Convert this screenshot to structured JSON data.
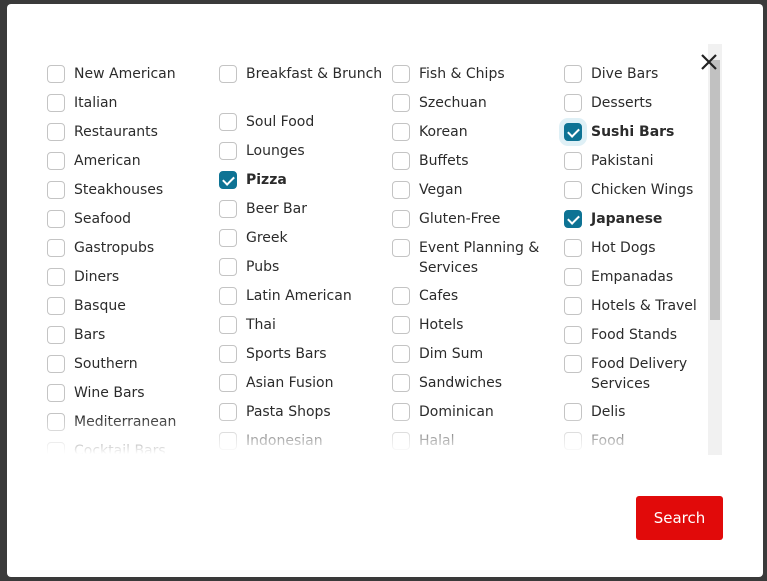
{
  "columns": [
    [
      {
        "label": "New American"
      },
      {
        "label": "Italian"
      },
      {
        "label": "Restaurants"
      },
      {
        "label": "American"
      },
      {
        "label": "Steakhouses"
      },
      {
        "label": "Seafood"
      },
      {
        "label": "Gastropubs"
      },
      {
        "label": "Diners"
      },
      {
        "label": "Basque"
      },
      {
        "label": "Bars"
      },
      {
        "label": "Southern"
      },
      {
        "label": "Wine Bars"
      },
      {
        "label": "Mediterranean"
      },
      {
        "label": "Cocktail Bars"
      }
    ],
    [
      {
        "label": "Breakfast & Brunch",
        "two": true
      },
      {
        "label": "Soul Food"
      },
      {
        "label": "Lounges"
      },
      {
        "label": "Pizza",
        "checked": true
      },
      {
        "label": "Beer Bar"
      },
      {
        "label": "Greek"
      },
      {
        "label": "Pubs"
      },
      {
        "label": "Latin American"
      },
      {
        "label": "Thai"
      },
      {
        "label": "Sports Bars"
      },
      {
        "label": "Asian Fusion"
      },
      {
        "label": "Pasta Shops"
      },
      {
        "label": "Indonesian"
      }
    ],
    [
      {
        "label": "Fish & Chips"
      },
      {
        "label": "Szechuan"
      },
      {
        "label": "Korean"
      },
      {
        "label": "Buffets"
      },
      {
        "label": "Vegan"
      },
      {
        "label": "Gluten-Free"
      },
      {
        "label": "Event Planning & Services",
        "two": true
      },
      {
        "label": "Cafes"
      },
      {
        "label": "Hotels"
      },
      {
        "label": "Dim Sum"
      },
      {
        "label": "Sandwiches"
      },
      {
        "label": "Dominican"
      },
      {
        "label": "Halal"
      }
    ],
    [
      {
        "label": "Dive Bars"
      },
      {
        "label": "Desserts"
      },
      {
        "label": "Sushi Bars",
        "checked": true,
        "focus": true
      },
      {
        "label": "Pakistani"
      },
      {
        "label": "Chicken Wings"
      },
      {
        "label": "Japanese",
        "checked": true
      },
      {
        "label": "Hot Dogs"
      },
      {
        "label": "Empanadas"
      },
      {
        "label": "Hotels & Travel"
      },
      {
        "label": "Food Stands"
      },
      {
        "label": "Food Delivery Services",
        "two": true
      },
      {
        "label": "Delis"
      },
      {
        "label": "Food"
      }
    ]
  ],
  "search_label": "Search",
  "close_icon": "close-x-icon",
  "colors": {
    "checked": "#0e7394",
    "search_button": "#e10a0a"
  }
}
